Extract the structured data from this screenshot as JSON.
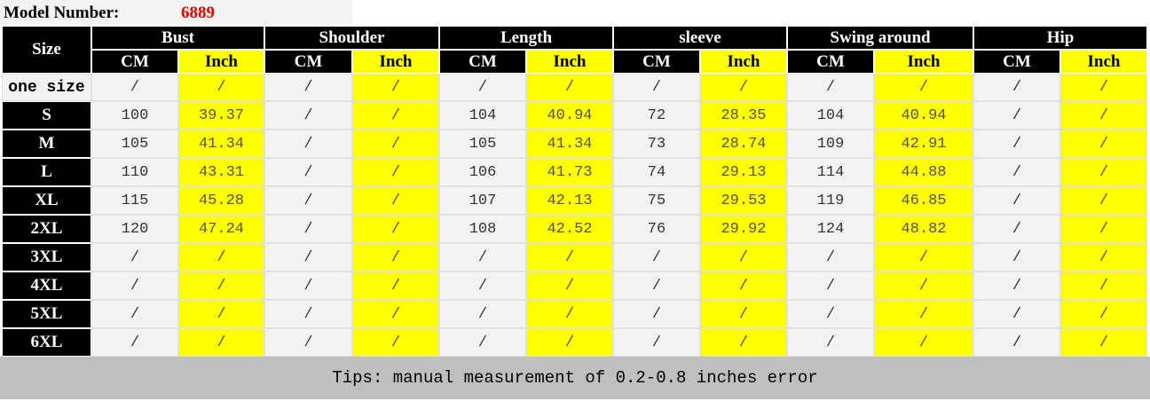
{
  "model": {
    "label": "Model Number:",
    "value": "6889"
  },
  "table": {
    "size_header": "Size",
    "groups": [
      {
        "name": "Bust",
        "sub": [
          "CM",
          "Inch"
        ]
      },
      {
        "name": "Shoulder",
        "sub": [
          "CM",
          "Inch"
        ]
      },
      {
        "name": "Length",
        "sub": [
          "CM",
          "Inch"
        ]
      },
      {
        "name": "sleeve",
        "sub": [
          "CM",
          "Inch"
        ]
      },
      {
        "name": "Swing around",
        "sub": [
          "CM",
          "Inch"
        ]
      },
      {
        "name": "Hip",
        "sub": [
          "CM",
          "Inch"
        ]
      }
    ],
    "rows": [
      {
        "size": "one size",
        "cells": [
          "/",
          "/",
          "/",
          "/",
          "/",
          "/",
          "/",
          "/",
          "/",
          "/",
          "/",
          "/"
        ]
      },
      {
        "size": "S",
        "cells": [
          "100",
          "39.37",
          "/",
          "/",
          "104",
          "40.94",
          "72",
          "28.35",
          "104",
          "40.94",
          "/",
          "/"
        ]
      },
      {
        "size": "M",
        "cells": [
          "105",
          "41.34",
          "/",
          "/",
          "105",
          "41.34",
          "73",
          "28.74",
          "109",
          "42.91",
          "/",
          "/"
        ]
      },
      {
        "size": "L",
        "cells": [
          "110",
          "43.31",
          "/",
          "/",
          "106",
          "41.73",
          "74",
          "29.13",
          "114",
          "44.88",
          "/",
          "/"
        ]
      },
      {
        "size": "XL",
        "cells": [
          "115",
          "45.28",
          "/",
          "/",
          "107",
          "42.13",
          "75",
          "29.53",
          "119",
          "46.85",
          "/",
          "/"
        ]
      },
      {
        "size": "2XL",
        "cells": [
          "120",
          "47.24",
          "/",
          "/",
          "108",
          "42.52",
          "76",
          "29.92",
          "124",
          "48.82",
          "/",
          "/"
        ]
      },
      {
        "size": "3XL",
        "cells": [
          "/",
          "/",
          "/",
          "/",
          "/",
          "/",
          "/",
          "/",
          "/",
          "/",
          "/",
          "/"
        ]
      },
      {
        "size": "4XL",
        "cells": [
          "/",
          "/",
          "/",
          "/",
          "/",
          "/",
          "/",
          "/",
          "/",
          "/",
          "/",
          "/"
        ]
      },
      {
        "size": "5XL",
        "cells": [
          "/",
          "/",
          "/",
          "/",
          "/",
          "/",
          "/",
          "/",
          "/",
          "/",
          "/",
          "/"
        ]
      },
      {
        "size": "6XL",
        "cells": [
          "/",
          "/",
          "/",
          "/",
          "/",
          "/",
          "/",
          "/",
          "/",
          "/",
          "/",
          "/"
        ]
      }
    ]
  },
  "tips": "Tips: manual measurement of 0.2-0.8 inches error"
}
